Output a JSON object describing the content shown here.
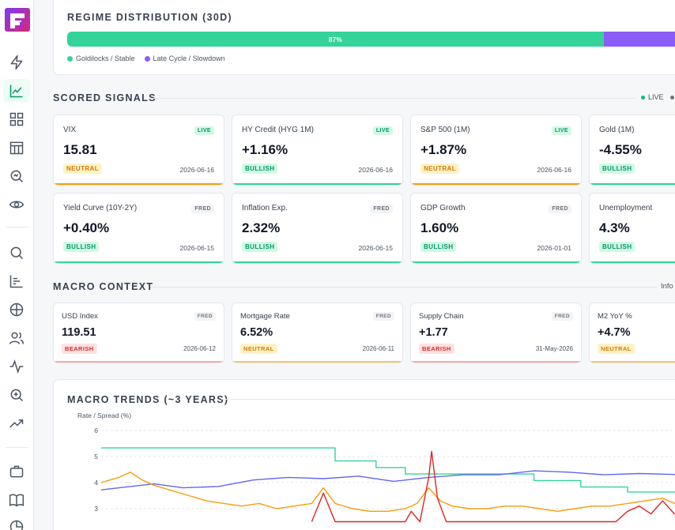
{
  "colors": {
    "accent": "#34d399",
    "purple": "#8b5cf6",
    "neutral": "#f59e0b",
    "bullish": "#34d399",
    "bearish": "#f87171"
  },
  "regime": {
    "title": "REGIME DISTRIBUTION (30D)",
    "segments": [
      {
        "name": "Goldilocks / Stable",
        "percent": 87,
        "label": "87%",
        "color": "#34d399"
      },
      {
        "name": "Late Cycle / Slowdown",
        "percent": 13,
        "label": "",
        "color": "#8b5cf6"
      }
    ]
  },
  "scored": {
    "title": "SCORED SIGNALS",
    "live_label": "LIVE",
    "cards": [
      {
        "name": "VIX",
        "value": "15.81",
        "badge": "NEUTRAL",
        "date": "2026-06-16",
        "source": "LIVE"
      },
      {
        "name": "HY Credit (HYG 1M)",
        "value": "+1.16%",
        "badge": "BULLISH",
        "date": "2026-06-16",
        "source": "LIVE"
      },
      {
        "name": "S&P 500 (1M)",
        "value": "+1.87%",
        "badge": "NEUTRAL",
        "date": "2026-06-16",
        "source": "LIVE"
      },
      {
        "name": "Gold (1M)",
        "value": "-4.55%",
        "badge": "BULLISH",
        "date": "",
        "source": ""
      },
      {
        "name": "Yield Curve (10Y-2Y)",
        "value": "+0.40%",
        "badge": "BULLISH",
        "date": "2026-06-15",
        "source": "FRED"
      },
      {
        "name": "Inflation Exp.",
        "value": "2.32%",
        "badge": "BULLISH",
        "date": "2026-06-15",
        "source": "FRED"
      },
      {
        "name": "GDP Growth",
        "value": "1.60%",
        "badge": "BULLISH",
        "date": "2026-01-01",
        "source": "FRED"
      },
      {
        "name": "Unemployment",
        "value": "4.3%",
        "badge": "BULLISH",
        "date": "",
        "source": ""
      }
    ]
  },
  "macro": {
    "title": "MACRO CONTEXT",
    "info_label": "Info",
    "cards": [
      {
        "name": "USD Index",
        "value": "119.51",
        "badge": "BEARISH",
        "date": "2026-06-12",
        "source": "FRED"
      },
      {
        "name": "Mortgage Rate",
        "value": "6.52%",
        "badge": "NEUTRAL",
        "date": "2026-06-11",
        "source": "FRED"
      },
      {
        "name": "Supply Chain",
        "value": "+1.77",
        "badge": "BEARISH",
        "date": "31-May-2026",
        "source": "FRED"
      },
      {
        "name": "M2 YoY %",
        "value": "+4.7%",
        "badge": "NEUTRAL",
        "date": "",
        "source": ""
      }
    ]
  },
  "trends": {
    "title": "MACRO TRENDS (~3 YEARS)",
    "chart_data": {
      "type": "line",
      "ylabel": "Rate / Spread (%)",
      "ylim": [
        2.5,
        6
      ],
      "yticks": [
        3,
        4,
        5,
        6
      ],
      "grid": true,
      "series": [
        {
          "color": "#34d399",
          "values": [
            [
              0,
              5.33
            ],
            [
              0.4,
              5.33
            ],
            [
              0.4,
              4.83
            ],
            [
              0.47,
              4.83
            ],
            [
              0.47,
              4.58
            ],
            [
              0.52,
              4.58
            ],
            [
              0.52,
              4.33
            ],
            [
              0.74,
              4.33
            ],
            [
              0.74,
              4.08
            ],
            [
              0.82,
              4.08
            ],
            [
              0.82,
              3.83
            ],
            [
              0.9,
              3.83
            ],
            [
              0.9,
              3.64
            ],
            [
              1,
              3.64
            ]
          ]
        },
        {
          "color": "#6366f1",
          "values": [
            [
              0,
              3.72
            ],
            [
              0.05,
              3.85
            ],
            [
              0.09,
              3.95
            ],
            [
              0.14,
              3.8
            ],
            [
              0.2,
              3.85
            ],
            [
              0.26,
              4.1
            ],
            [
              0.32,
              4.2
            ],
            [
              0.38,
              4.15
            ],
            [
              0.44,
              4.25
            ],
            [
              0.5,
              4.05
            ],
            [
              0.56,
              4.2
            ],
            [
              0.62,
              4.3
            ],
            [
              0.68,
              4.3
            ],
            [
              0.74,
              4.45
            ],
            [
              0.8,
              4.4
            ],
            [
              0.86,
              4.3
            ],
            [
              0.92,
              4.35
            ],
            [
              1,
              4.3
            ]
          ]
        },
        {
          "color": "#f59e0b",
          "values": [
            [
              0,
              4.0
            ],
            [
              0.03,
              4.2
            ],
            [
              0.05,
              4.4
            ],
            [
              0.07,
              4.1
            ],
            [
              0.09,
              3.9
            ],
            [
              0.12,
              3.7
            ],
            [
              0.15,
              3.5
            ],
            [
              0.18,
              3.3
            ],
            [
              0.21,
              3.2
            ],
            [
              0.24,
              3.1
            ],
            [
              0.27,
              3.2
            ],
            [
              0.3,
              3.0
            ],
            [
              0.33,
              3.1
            ],
            [
              0.36,
              3.2
            ],
            [
              0.38,
              3.8
            ],
            [
              0.4,
              3.2
            ],
            [
              0.43,
              3.0
            ],
            [
              0.46,
              2.9
            ],
            [
              0.49,
              2.9
            ],
            [
              0.52,
              3.0
            ],
            [
              0.54,
              3.2
            ],
            [
              0.56,
              3.8
            ],
            [
              0.58,
              3.3
            ],
            [
              0.6,
              3.1
            ],
            [
              0.63,
              3.0
            ],
            [
              0.66,
              3.0
            ],
            [
              0.69,
              3.1
            ],
            [
              0.72,
              3.1
            ],
            [
              0.75,
              3.0
            ],
            [
              0.78,
              2.9
            ],
            [
              0.81,
              3.0
            ],
            [
              0.84,
              3.1
            ],
            [
              0.87,
              3.1
            ],
            [
              0.9,
              3.2
            ],
            [
              0.93,
              3.3
            ],
            [
              0.96,
              3.4
            ],
            [
              0.98,
              3.2
            ],
            [
              1,
              3.3
            ]
          ]
        },
        {
          "color": "#dc2626",
          "values": [
            [
              0.36,
              2.5
            ],
            [
              0.38,
              3.6
            ],
            [
              0.4,
              2.5
            ],
            [
              0.52,
              2.5
            ],
            [
              0.53,
              2.9
            ],
            [
              0.545,
              2.5
            ],
            [
              0.56,
              4.2
            ],
            [
              0.565,
              5.2
            ],
            [
              0.575,
              3.4
            ],
            [
              0.59,
              2.5
            ],
            [
              0.88,
              2.5
            ],
            [
              0.9,
              2.9
            ],
            [
              0.92,
              3.1
            ],
            [
              0.94,
              2.8
            ],
            [
              0.96,
              3.3
            ],
            [
              0.98,
              2.8
            ],
            [
              1,
              2.9
            ]
          ]
        }
      ]
    }
  }
}
